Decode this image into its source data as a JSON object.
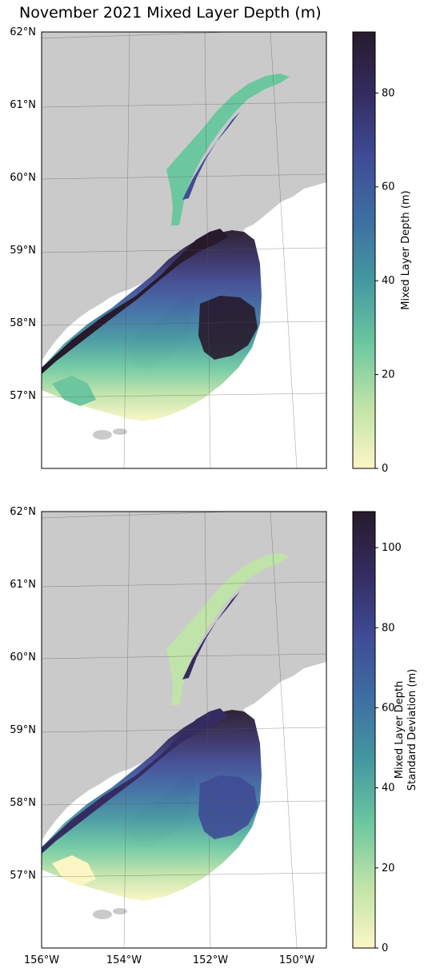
{
  "title": "November 2021 Mixed Layer Depth (m)",
  "colors": {
    "land": "#cacaca",
    "ocean": "#ffffff",
    "grid": "#555555",
    "colormap": [
      "#fcf6c4",
      "#bfe3a8",
      "#6cc7a0",
      "#4498a0",
      "#3d6ea3",
      "#3f4b95",
      "#342c61",
      "#271a2c"
    ]
  },
  "axes": {
    "lat_labels": [
      "62°N",
      "61°N",
      "60°N",
      "59°N",
      "58°N",
      "57°N"
    ],
    "lon_labels": [
      "156°W",
      "154°W",
      "152°W",
      "150°W"
    ]
  },
  "panels": [
    {
      "name": "mean",
      "colorbar": {
        "label_lines": [
          "Mixed Layer Depth (m)"
        ],
        "ticks": [
          "0",
          "20",
          "40",
          "60",
          "80"
        ],
        "tick_values": [
          0,
          20,
          40,
          60,
          80
        ],
        "max": 93
      }
    },
    {
      "name": "std",
      "colorbar": {
        "label_lines": [
          "Mixed Layer Depth",
          "Standard Deviation (m)"
        ],
        "ticks": [
          "0",
          "20",
          "40",
          "60",
          "80",
          "100"
        ],
        "tick_values": [
          0,
          20,
          40,
          60,
          80,
          100
        ],
        "max": 109
      }
    }
  ]
}
